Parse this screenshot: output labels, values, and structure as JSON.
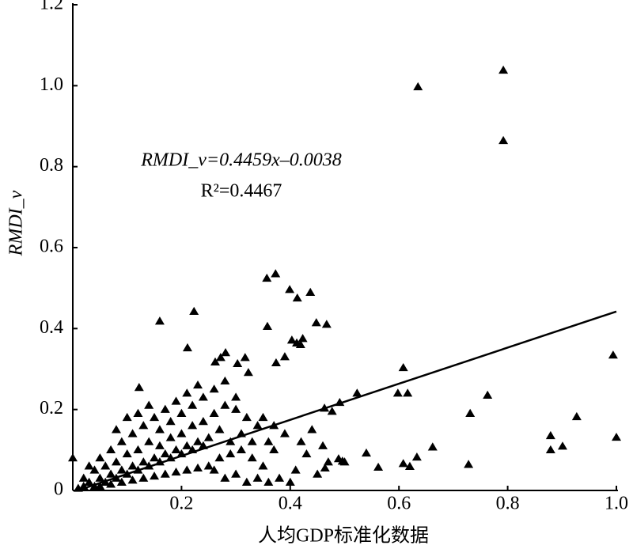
{
  "chart_data": {
    "type": "scatter",
    "xlabel": "人均GDP标准化数据",
    "ylabel": "RMDI_v",
    "equation": "RMDI_v=0.4459x–0.0038",
    "r_squared": "R²=0.4467",
    "color": "#000000",
    "xlim": [
      0,
      1
    ],
    "ylim": [
      0,
      1.2
    ],
    "xticks": [
      0.2,
      0.4,
      0.6,
      0.8,
      {
        "value": 1,
        "label": "1.0"
      }
    ],
    "yticks": [
      0,
      0.2,
      0.4,
      0.6,
      0.8,
      {
        "value": 1,
        "label": "1.0"
      },
      1.2
    ],
    "trend_line": {
      "x": [
        0.02,
        1
      ],
      "y": [
        0.0051,
        0.4421
      ]
    },
    "x": [
      0.635,
      0.792,
      0.792,
      0.994,
      1.0,
      0.927,
      0.879,
      0.879,
      0.901,
      0.763,
      0.731,
      0.728,
      0.662,
      0.608,
      0.616,
      0.598,
      0.633,
      0.608,
      0.62,
      0.54,
      0.562,
      0.523,
      0.373,
      0.357,
      0.399,
      0.413,
      0.437,
      0.448,
      0.467,
      0.358,
      0.403,
      0.412,
      0.423,
      0.419,
      0.374,
      0.39,
      0.223,
      0.16,
      0.211,
      0.122,
      0,
      0.281,
      0.272,
      0.317,
      0.323,
      0.303,
      0.262,
      0.477,
      0.491,
      0.463,
      0.489,
      0.496,
      0.464,
      0.01,
      0.02,
      0.03,
      0.04,
      0.05,
      0.06,
      0.07,
      0.08,
      0.09,
      0.1,
      0.11,
      0.12,
      0.13,
      0.14,
      0.15,
      0.16,
      0.17,
      0.18,
      0.19,
      0.2,
      0.21,
      0.22,
      0.23,
      0.24,
      0.25,
      0.05,
      0.07,
      0.09,
      0.11,
      0.13,
      0.15,
      0.17,
      0.19,
      0.21,
      0.23,
      0.08,
      0.1,
      0.12,
      0.14,
      0.16,
      0.18,
      0.2,
      0.22,
      0.24,
      0.26,
      0.28,
      0.3,
      0.32,
      0.27,
      0.29,
      0.31,
      0.33,
      0.35,
      0.37,
      0.39,
      0.41,
      0.43,
      0.45,
      0.47,
      0.5,
      0.26,
      0.28,
      0.3,
      0.32,
      0.34,
      0.36,
      0.38,
      0.4,
      0.04,
      0.06,
      0.08,
      0.1,
      0.12,
      0.14,
      0.16,
      0.18,
      0.2,
      0.22,
      0.24,
      0.26,
      0.28,
      0.3,
      0.34,
      0.36,
      0.02,
      0.03,
      0.05,
      0.07,
      0.09,
      0.11,
      0.13,
      0.15,
      0.17,
      0.19,
      0.21,
      0.23,
      0.25,
      0.27,
      0.29,
      0.31,
      0.33,
      0.35,
      0.37,
      0.42,
      0.44,
      0.46
    ],
    "values": [
      0.997,
      1.038,
      0.864,
      0.334,
      0.131,
      0.182,
      0.135,
      0.1,
      0.109,
      0.235,
      0.19,
      0.064,
      0.107,
      0.303,
      0.24,
      0.24,
      0.082,
      0.066,
      0.059,
      0.092,
      0.057,
      0.24,
      0.535,
      0.524,
      0.496,
      0.475,
      0.489,
      0.414,
      0.41,
      0.405,
      0.371,
      0.364,
      0.375,
      0.36,
      0.315,
      0.33,
      0.442,
      0.418,
      0.352,
      0.254,
      0.08,
      0.34,
      0.328,
      0.328,
      0.291,
      0.313,
      0.317,
      0.195,
      0.217,
      0.203,
      0.078,
      0.072,
      0.055,
      0.005,
      0.01,
      0.02,
      0.01,
      0.03,
      0.02,
      0.04,
      0.03,
      0.05,
      0.04,
      0.06,
      0.05,
      0.07,
      0.06,
      0.08,
      0.07,
      0.09,
      0.08,
      0.1,
      0.09,
      0.11,
      0.1,
      0.12,
      0.11,
      0.13,
      0.08,
      0.1,
      0.12,
      0.14,
      0.16,
      0.18,
      0.2,
      0.22,
      0.24,
      0.26,
      0.15,
      0.18,
      0.19,
      0.21,
      0.15,
      0.17,
      0.19,
      0.21,
      0.23,
      0.25,
      0.27,
      0.2,
      0.18,
      0.15,
      0.12,
      0.1,
      0.08,
      0.06,
      0.1,
      0.14,
      0.05,
      0.09,
      0.04,
      0.07,
      0.07,
      0.05,
      0.03,
      0.04,
      0.02,
      0.03,
      0.02,
      0.03,
      0.02,
      0.05,
      0.06,
      0.07,
      0.09,
      0.1,
      0.12,
      0.11,
      0.13,
      0.14,
      0.16,
      0.17,
      0.19,
      0.21,
      0.23,
      0.16,
      0.12,
      0.03,
      0.06,
      0.01,
      0.015,
      0.02,
      0.025,
      0.03,
      0.035,
      0.04,
      0.045,
      0.05,
      0.055,
      0.06,
      0.08,
      0.09,
      0.14,
      0.12,
      0.18,
      0.16,
      0.12,
      0.15,
      0.11
    ]
  }
}
